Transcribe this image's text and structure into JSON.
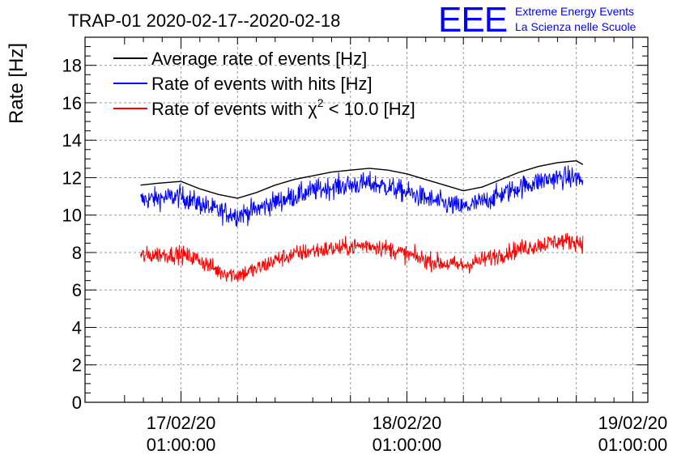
{
  "chart_data": {
    "type": "line",
    "title": "TRAP-01 2020-02-17--2020-02-18",
    "ylabel": "Rate [Hz]",
    "xlabel": "",
    "ylim": [
      0,
      19.5
    ],
    "xlim_hours": [
      -10.2,
      49.6
    ],
    "grid": true,
    "legend_position": "top-left",
    "y_ticks": [
      0,
      2,
      4,
      6,
      8,
      10,
      12,
      14,
      16,
      18
    ],
    "x_ticks": [
      {
        "hour": 0,
        "date": "17/02/20",
        "time": "01:00:00"
      },
      {
        "hour": 24,
        "date": "18/02/20",
        "time": "01:00:00"
      },
      {
        "hour": 48,
        "date": "19/02/20",
        "time": "01:00:00"
      }
    ],
    "data_range_hours": [
      -4.3,
      42.7
    ],
    "series": [
      {
        "name": "Average rate of events [Hz]",
        "color": "#000000",
        "kind": "average",
        "x": [
          -4.3,
          -2.5,
          0,
          2,
          4,
          6,
          8,
          10,
          12,
          14,
          16,
          18,
          20,
          22,
          24,
          26,
          28,
          30,
          32,
          34,
          36,
          38,
          40,
          42,
          42.7
        ],
        "y": [
          11.6,
          11.7,
          11.8,
          11.4,
          11.1,
          10.9,
          11.2,
          11.6,
          11.9,
          12.1,
          12.3,
          12.4,
          12.5,
          12.4,
          12.2,
          11.9,
          11.6,
          11.3,
          11.5,
          11.9,
          12.3,
          12.6,
          12.8,
          12.9,
          12.7
        ]
      },
      {
        "name": "Rate of events with hits [Hz]",
        "color": "#0000ff",
        "kind": "noisy",
        "noise": 0.55,
        "x": [
          -4.3,
          -2.5,
          0,
          2,
          4,
          6,
          8,
          10,
          12,
          14,
          16,
          18,
          20,
          22,
          24,
          26,
          28,
          30,
          32,
          34,
          36,
          38,
          40,
          42,
          42.7
        ],
        "y": [
          10.8,
          10.9,
          11.0,
          10.6,
          10.2,
          10.0,
          10.3,
          10.7,
          11.0,
          11.3,
          11.5,
          11.6,
          11.7,
          11.5,
          11.2,
          10.9,
          10.6,
          10.4,
          10.7,
          11.1,
          11.5,
          11.8,
          12.0,
          12.0,
          11.8
        ]
      },
      {
        "name": "Rate of events with χ² < 10.0 [Hz]",
        "color": "#ff0000",
        "kind": "noisy",
        "noise": 0.45,
        "x": [
          -4.3,
          -2.5,
          0,
          2,
          4,
          6,
          8,
          10,
          12,
          14,
          16,
          18,
          20,
          22,
          24,
          26,
          28,
          30,
          32,
          34,
          36,
          38,
          40,
          42,
          42.7
        ],
        "y": [
          7.8,
          7.9,
          7.9,
          7.6,
          7.0,
          6.8,
          7.1,
          7.6,
          7.9,
          8.1,
          8.2,
          8.3,
          8.4,
          8.2,
          7.9,
          7.6,
          7.4,
          7.3,
          7.6,
          7.9,
          8.2,
          8.4,
          8.6,
          8.6,
          8.5
        ]
      }
    ],
    "legend_labels": {
      "average": "Average rate of events [Hz]",
      "hits": "Rate of events with hits [Hz]",
      "chi_prefix": "Rate of events with ",
      "chi_symbol": "χ",
      "chi_exp": "2",
      "chi_suffix": " < 10.0 [Hz]"
    }
  },
  "logo": {
    "letters": "EEE",
    "line1": "Extreme Energy Events",
    "line2": "La Scienza nelle Scuole",
    "color": "#0000ff"
  }
}
